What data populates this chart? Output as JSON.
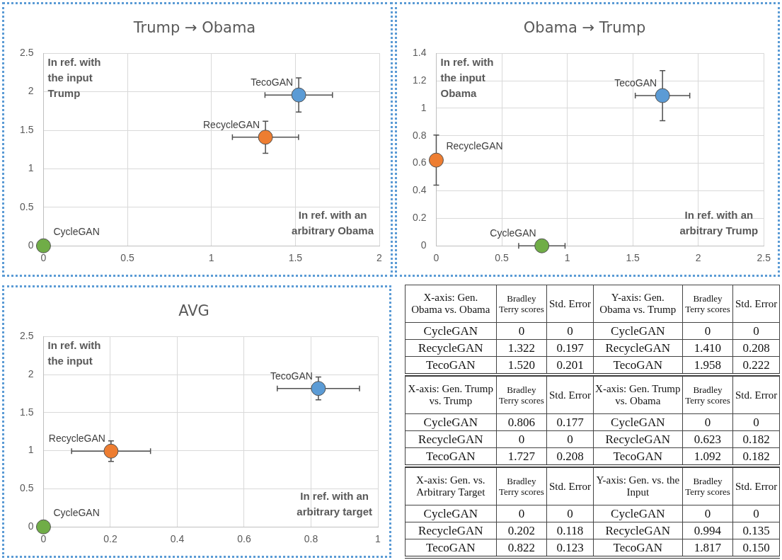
{
  "chart_data": [
    {
      "type": "scatter",
      "title": "Trump → Obama",
      "xlim": [
        0,
        2
      ],
      "xticks": [
        0,
        0.5,
        1,
        1.5,
        2
      ],
      "ylim": [
        0,
        2.5
      ],
      "yticks": [
        0,
        0.5,
        1,
        1.5,
        2,
        2.5
      ],
      "grid": true,
      "marker": "circle",
      "annotations": [
        "In ref. with the input Trump",
        "In ref. with an arbitrary Obama"
      ],
      "series": [
        {
          "name": "CycleGAN",
          "color": "#70ad47",
          "x": [
            0
          ],
          "values": [
            0
          ],
          "xerrors": [
            0
          ],
          "errors": [
            0
          ]
        },
        {
          "name": "RecycleGAN",
          "color": "#ed7d31",
          "x": [
            1.322
          ],
          "values": [
            1.41
          ],
          "xerrors": [
            0.197
          ],
          "errors": [
            0.208
          ]
        },
        {
          "name": "TecoGAN",
          "color": "#5b9bd5",
          "x": [
            1.52
          ],
          "values": [
            1.958
          ],
          "xerrors": [
            0.201
          ],
          "errors": [
            0.222
          ]
        }
      ]
    },
    {
      "type": "scatter",
      "title": "Obama → Trump",
      "xlim": [
        0,
        2.5
      ],
      "xticks": [
        0,
        0.5,
        1,
        1.5,
        2,
        2.5
      ],
      "ylim": [
        0,
        1.4
      ],
      "yticks": [
        0,
        0.2,
        0.4,
        0.6,
        0.8,
        1,
        1.2,
        1.4
      ],
      "grid": true,
      "marker": "circle",
      "annotations": [
        "In ref. with the input Obama",
        "In ref. with an arbitrary Trump"
      ],
      "series": [
        {
          "name": "CycleGAN",
          "color": "#70ad47",
          "x": [
            0.806
          ],
          "values": [
            0
          ],
          "xerrors": [
            0.177
          ],
          "errors": [
            0
          ]
        },
        {
          "name": "RecycleGAN",
          "color": "#ed7d31",
          "x": [
            0
          ],
          "values": [
            0.623
          ],
          "xerrors": [
            0
          ],
          "errors": [
            0.182
          ]
        },
        {
          "name": "TecoGAN",
          "color": "#5b9bd5",
          "x": [
            1.727
          ],
          "values": [
            1.092
          ],
          "xerrors": [
            0.208
          ],
          "errors": [
            0.182
          ]
        }
      ]
    },
    {
      "type": "scatter",
      "title": "AVG",
      "xlim": [
        0,
        1
      ],
      "xticks": [
        0,
        0.2,
        0.4,
        0.6,
        0.8,
        1
      ],
      "ylim": [
        0,
        2.5
      ],
      "yticks": [
        0,
        0.5,
        1,
        1.5,
        2,
        2.5
      ],
      "grid": true,
      "marker": "circle",
      "annotations": [
        "In ref. with the input",
        "In ref. with an arbitrary target"
      ],
      "series": [
        {
          "name": "CycleGAN",
          "color": "#70ad47",
          "x": [
            0
          ],
          "values": [
            0
          ],
          "xerrors": [
            0
          ],
          "errors": [
            0
          ]
        },
        {
          "name": "RecycleGAN",
          "color": "#ed7d31",
          "x": [
            0.202
          ],
          "values": [
            0.994
          ],
          "xerrors": [
            0.118
          ],
          "errors": [
            0.135
          ]
        },
        {
          "name": "TecoGAN",
          "color": "#5b9bd5",
          "x": [
            0.822
          ],
          "values": [
            1.817
          ],
          "xerrors": [
            0.123
          ],
          "errors": [
            0.15
          ]
        }
      ]
    },
    {
      "type": "other",
      "annotations": [
        "X-axis: Gen. Obama vs. Obama",
        "Bradley Terry scores",
        "Std. Error",
        "Y-axis: Gen. Obama vs. Trump",
        "Bradley Terry scores",
        "Std. Error",
        "CycleGAN",
        "0",
        "0",
        "CycleGAN",
        "0",
        "0",
        "RecycleGAN",
        "1.322",
        "0.197",
        "RecycleGAN",
        "1.410",
        "0.208",
        "TecoGAN",
        "1.520",
        "0.201",
        "TecoGAN",
        "1.958",
        "0.222",
        "X-axis: Gen. Trump vs. Trump",
        "Bradley Terry scores",
        "Std. Error",
        "X-axis: Gen. Trump vs. Obama",
        "Bradley Terry scores",
        "Std. Error",
        "CycleGAN",
        "0.806",
        "0.177",
        "CycleGAN",
        "0",
        "0",
        "RecycleGAN",
        "0",
        "0",
        "RecycleGAN",
        "0.623",
        "0.182",
        "TecoGAN",
        "1.727",
        "0.208",
        "TecoGAN",
        "1.092",
        "0.182",
        "X-axis: Gen. vs. Arbitrary Target",
        "Bradley Terry scores",
        "Std. Error",
        "Y-axis: Gen. vs. the Input",
        "Bradley Terry scores",
        "Std. Error",
        "CycleGAN",
        "0",
        "0",
        "CycleGAN",
        "0",
        "0",
        "RecycleGAN",
        "0.202",
        "0.118",
        "RecycleGAN",
        "0.994",
        "0.135",
        "TecoGAN",
        "0.822",
        "0.123",
        "TecoGAN",
        "1.817",
        "0.150"
      ]
    }
  ]
}
